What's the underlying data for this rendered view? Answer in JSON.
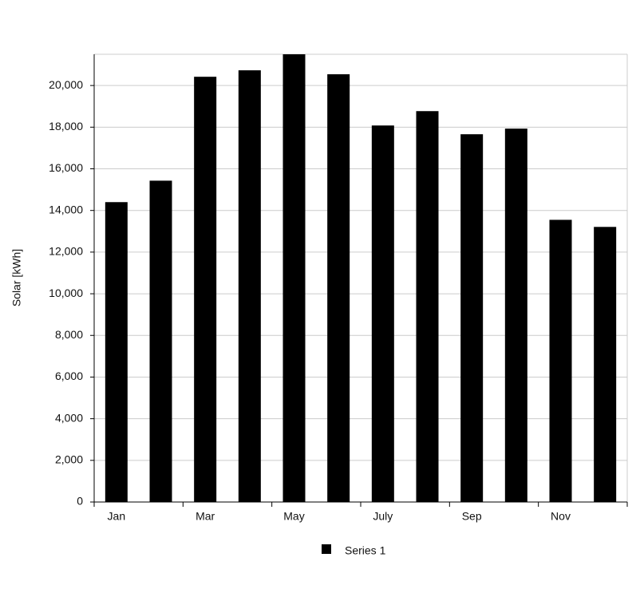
{
  "chart_data": {
    "type": "bar",
    "y_label": "Solar [kWh]",
    "categories": [
      "Jan",
      null,
      "Mar",
      null,
      "May",
      null,
      "July",
      null,
      "Sep",
      null,
      "Nov",
      null
    ],
    "series": [
      {
        "name": "Series 1",
        "color": "#000000",
        "values": [
          14400,
          15430,
          20420,
          20730,
          21500,
          20540,
          18080,
          18770,
          17660,
          17930,
          13550,
          13210
        ]
      }
    ],
    "ylim": [
      0,
      21500
    ],
    "yticks": [
      0,
      {
        "value": 2000,
        "label": "2,000"
      },
      {
        "value": 4000,
        "label": "4,000"
      },
      {
        "value": 6000,
        "label": "6,000"
      },
      {
        "value": 8000,
        "label": "8,000"
      },
      {
        "value": 10000,
        "label": "10,000"
      },
      {
        "value": 12000,
        "label": "12,000"
      },
      {
        "value": 14000,
        "label": "14,000"
      },
      {
        "value": 16000,
        "label": "16,000"
      },
      {
        "value": 18000,
        "label": "18,000"
      },
      {
        "value": 20000,
        "label": "20,000"
      }
    ],
    "grid": true,
    "legend": "bottom"
  }
}
